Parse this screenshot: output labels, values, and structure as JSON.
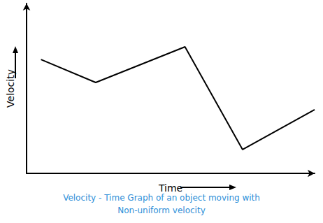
{
  "chart_data": {
    "type": "line",
    "title": "Velocity - Time Graph of an object moving with\nNon-uniform velocity",
    "x_label": "Time",
    "y_label": "Velocity",
    "x": [
      5,
      24,
      55,
      75,
      100
    ],
    "values": [
      67,
      53.5,
      74.5,
      14,
      37.5
    ],
    "xlim": [
      0,
      100
    ],
    "ylim": [
      0,
      100
    ],
    "color": "#000000",
    "marker": "none",
    "tick_labels": false,
    "grid": false
  }
}
